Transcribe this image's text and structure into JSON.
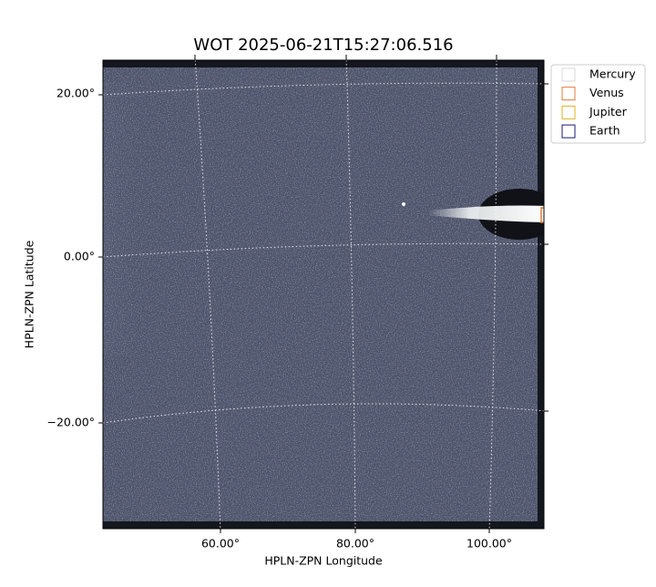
{
  "title": "WOT 2025-06-21T15:27:06.516",
  "x_label": "HPLN-ZPN Longitude",
  "y_label": "HPLN-ZPN Latitude",
  "x_ticks": [
    "60.00°",
    "80.00°",
    "100.00°"
  ],
  "y_ticks": [
    "20.00°",
    "0.00°",
    "−20.00°"
  ],
  "legend": [
    {
      "label": "Mercury",
      "color": "#d8d8d8"
    },
    {
      "label": "Venus",
      "color": "#e07b39"
    },
    {
      "label": "Jupiter",
      "color": "#e0b020"
    },
    {
      "label": "Earth",
      "color": "#1a1a7a"
    }
  ]
}
